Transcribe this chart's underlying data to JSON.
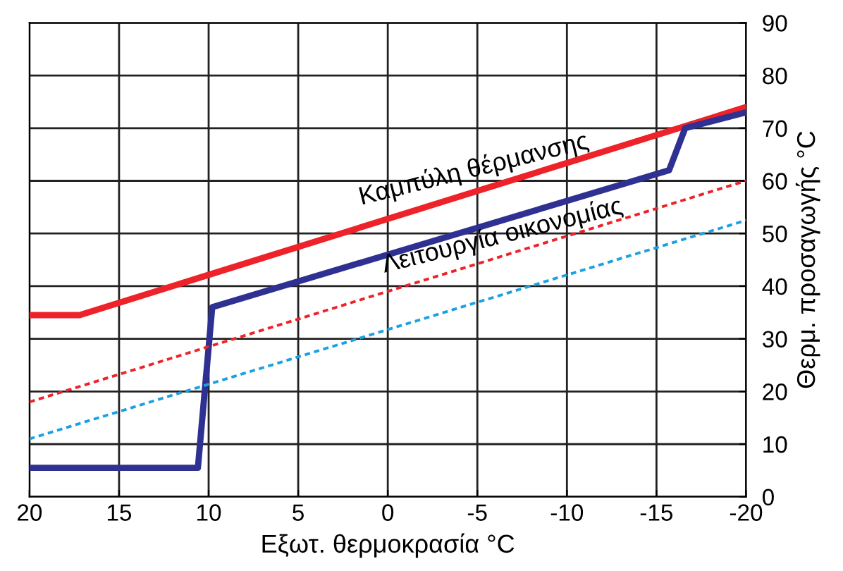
{
  "chart_data": {
    "type": "line",
    "xlabel": "Εξωτ. θερμοκρασία °C",
    "ylabel": "Θερμ. προσαγωγής °C",
    "xlim": [
      20,
      -20
    ],
    "xticks": [
      20,
      15,
      10,
      5,
      0,
      -5,
      -10,
      -15,
      -20
    ],
    "ylim": [
      0,
      90
    ],
    "yticks": [
      0,
      10,
      20,
      30,
      40,
      50,
      60,
      70,
      80,
      90
    ],
    "grid": true,
    "marker": "none",
    "series": [
      {
        "x": [
          20,
          17.2,
          -20
        ],
        "values": [
          34.5,
          34.5,
          74
        ],
        "color": "#ee2229",
        "line_style": "solid"
      },
      {
        "x": [
          20,
          10.6,
          9.8,
          -15.7,
          -16.6,
          -20
        ],
        "values": [
          5.5,
          5.5,
          36,
          62,
          70,
          73
        ],
        "color": "#2e3192",
        "line_style": "solid"
      },
      {
        "x": [
          20,
          -20
        ],
        "values": [
          18,
          60
        ],
        "color": "#ee2229",
        "line_style": "dotted"
      },
      {
        "x": [
          20,
          -20
        ],
        "values": [
          11,
          52.5
        ],
        "color": "#1ba1e2",
        "line_style": "dotted"
      }
    ],
    "annotations": [
      "Καμπύλη θέρμανσης",
      "Λειτουργία οικονομίας"
    ]
  }
}
